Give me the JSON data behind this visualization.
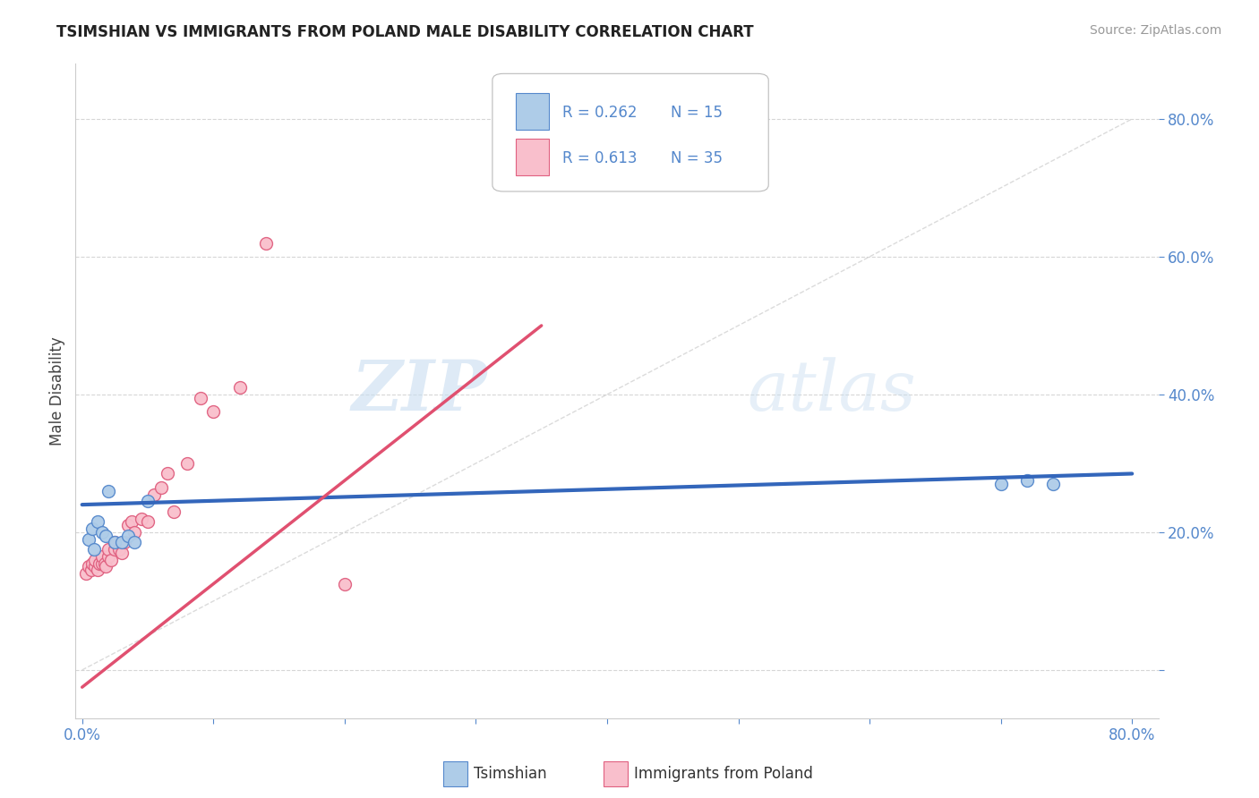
{
  "title": "TSIMSHIAN VS IMMIGRANTS FROM POLAND MALE DISABILITY CORRELATION CHART",
  "source": "Source: ZipAtlas.com",
  "ylabel": "Male Disability",
  "xlim": [
    -0.005,
    0.82
  ],
  "ylim": [
    -0.07,
    0.88
  ],
  "series1_name": "Tsimshian",
  "series1_color": "#aecce8",
  "series1_edge_color": "#5588cc",
  "series1_line_color": "#3366bb",
  "series1_R": 0.262,
  "series1_N": 15,
  "series1_x": [
    0.005,
    0.008,
    0.009,
    0.012,
    0.015,
    0.018,
    0.02,
    0.025,
    0.03,
    0.035,
    0.04,
    0.05,
    0.7,
    0.72,
    0.74
  ],
  "series1_y": [
    0.19,
    0.205,
    0.175,
    0.215,
    0.2,
    0.195,
    0.26,
    0.185,
    0.185,
    0.195,
    0.185,
    0.245,
    0.27,
    0.275,
    0.27
  ],
  "series2_name": "Immigrants from Poland",
  "series2_color": "#f9bfcc",
  "series2_edge_color": "#e06080",
  "series2_line_color": "#e05070",
  "series2_R": 0.613,
  "series2_N": 35,
  "series2_x": [
    0.003,
    0.005,
    0.007,
    0.008,
    0.01,
    0.01,
    0.012,
    0.013,
    0.015,
    0.015,
    0.017,
    0.018,
    0.02,
    0.02,
    0.022,
    0.025,
    0.025,
    0.028,
    0.03,
    0.032,
    0.035,
    0.038,
    0.04,
    0.045,
    0.05,
    0.055,
    0.06,
    0.065,
    0.07,
    0.08,
    0.09,
    0.1,
    0.12,
    0.14,
    0.2
  ],
  "series2_y": [
    0.14,
    0.15,
    0.145,
    0.155,
    0.15,
    0.16,
    0.145,
    0.155,
    0.155,
    0.165,
    0.155,
    0.15,
    0.165,
    0.175,
    0.16,
    0.175,
    0.185,
    0.175,
    0.17,
    0.185,
    0.21,
    0.215,
    0.2,
    0.22,
    0.215,
    0.255,
    0.265,
    0.285,
    0.23,
    0.3,
    0.395,
    0.375,
    0.41,
    0.62,
    0.125
  ],
  "trend1_x0": 0.0,
  "trend1_y0": 0.24,
  "trend1_x1": 0.8,
  "trend1_y1": 0.285,
  "trend2_x0": 0.0,
  "trend2_y0": -0.025,
  "trend2_x1": 0.35,
  "trend2_y1": 0.5,
  "legend_color1": "#aecce8",
  "legend_edge1": "#5588cc",
  "legend_color2": "#f9bfcc",
  "legend_edge2": "#e06080",
  "watermark_zip": "ZIP",
  "watermark_atlas": "atlas",
  "background_color": "#ffffff",
  "grid_color": "#cccccc",
  "diagonal_color": "#cccccc",
  "tick_color": "#5588cc",
  "ytick_values": [
    0.0,
    0.2,
    0.4,
    0.6,
    0.8
  ],
  "xtick_values": [
    0.0,
    0.1,
    0.2,
    0.3,
    0.4,
    0.5,
    0.6,
    0.7,
    0.8
  ]
}
